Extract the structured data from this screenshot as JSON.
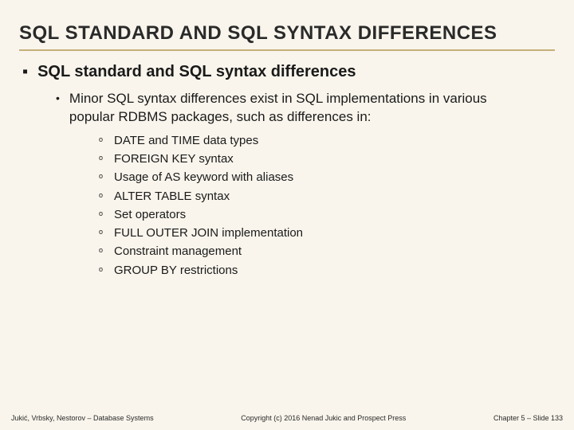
{
  "colors": {
    "background": "#f9f5ec",
    "text": "#1a1a1a",
    "underline": "#c6b07a"
  },
  "title": "SQL STANDARD AND SQL SYNTAX DIFFERENCES",
  "typography": {
    "title_fontsize": 24,
    "level1_fontsize": 20,
    "level2_fontsize": 17,
    "level3_fontsize": 15,
    "footer_fontsize": 9
  },
  "level1": {
    "bullet": "▪",
    "text": "SQL standard and SQL syntax differences"
  },
  "level2": {
    "bullet": "•",
    "text": "Minor SQL syntax differences exist in SQL implementations in various popular RDBMS packages, such as differences in:"
  },
  "level3_bullet": "o",
  "level3_items": [
    "DATE and TIME data types",
    "FOREIGN KEY syntax",
    "Usage of AS keyword with aliases",
    "ALTER TABLE syntax",
    "Set operators",
    "FULL OUTER JOIN implementation",
    "Constraint management",
    "GROUP BY restrictions"
  ],
  "footer": {
    "left": "Jukić, Vrbsky, Nestorov – Database Systems",
    "center": "Copyright (c) 2016 Nenad Jukic and Prospect Press",
    "right": "Chapter 5 – Slide 133"
  }
}
